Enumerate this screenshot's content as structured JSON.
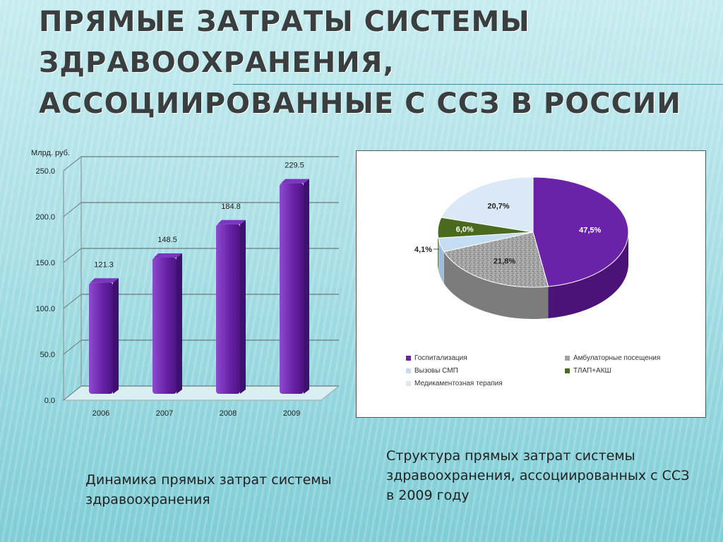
{
  "slide": {
    "title": "ПРЯМЫЕ ЗАТРАТЫ СИСТЕМЫ ЗДРАВООХРАНЕНИЯ, АССОЦИИРОВАННЫЕ С ССЗ В РОССИИ",
    "caption_bar": "Динамика прямых затрат системы здравоохранения",
    "caption_pie": "Структура прямых затрат системы здравоохранения, ассоциированных с ССЗ в 2009 году"
  },
  "chart_data": [
    {
      "type": "bar",
      "ylabel": "Млрд. руб.",
      "categories": [
        "2006",
        "2007",
        "2008",
        "2009"
      ],
      "values": [
        121.3,
        148.5,
        184.8,
        229.5
      ],
      "value_labels": [
        "121.3",
        "148.5",
        "184.8",
        "229.5"
      ],
      "yticks": [
        "0.0",
        "50.0",
        "100.0",
        "150.0",
        "200.0",
        "250.0"
      ],
      "ylim": [
        0,
        250
      ],
      "grid": true,
      "color": "#6a22a8"
    },
    {
      "type": "pie",
      "labels": [
        "Госпитализация",
        "Амбулаторные посещения",
        "Вызовы СМП",
        "ТЛАП+АКШ",
        "Медикаментозная терапия"
      ],
      "values": [
        47.5,
        21.8,
        4.1,
        6.0,
        20.7
      ],
      "value_labels": [
        "47,5%",
        "21,8%",
        "4,1%",
        "6,0%",
        "20,7%"
      ],
      "colors": [
        "#6a22a8",
        "#a3a3a3",
        "#c5ddf2",
        "#4a6a1e",
        "#dbe9f6"
      ],
      "legend_position": "bottom"
    }
  ]
}
